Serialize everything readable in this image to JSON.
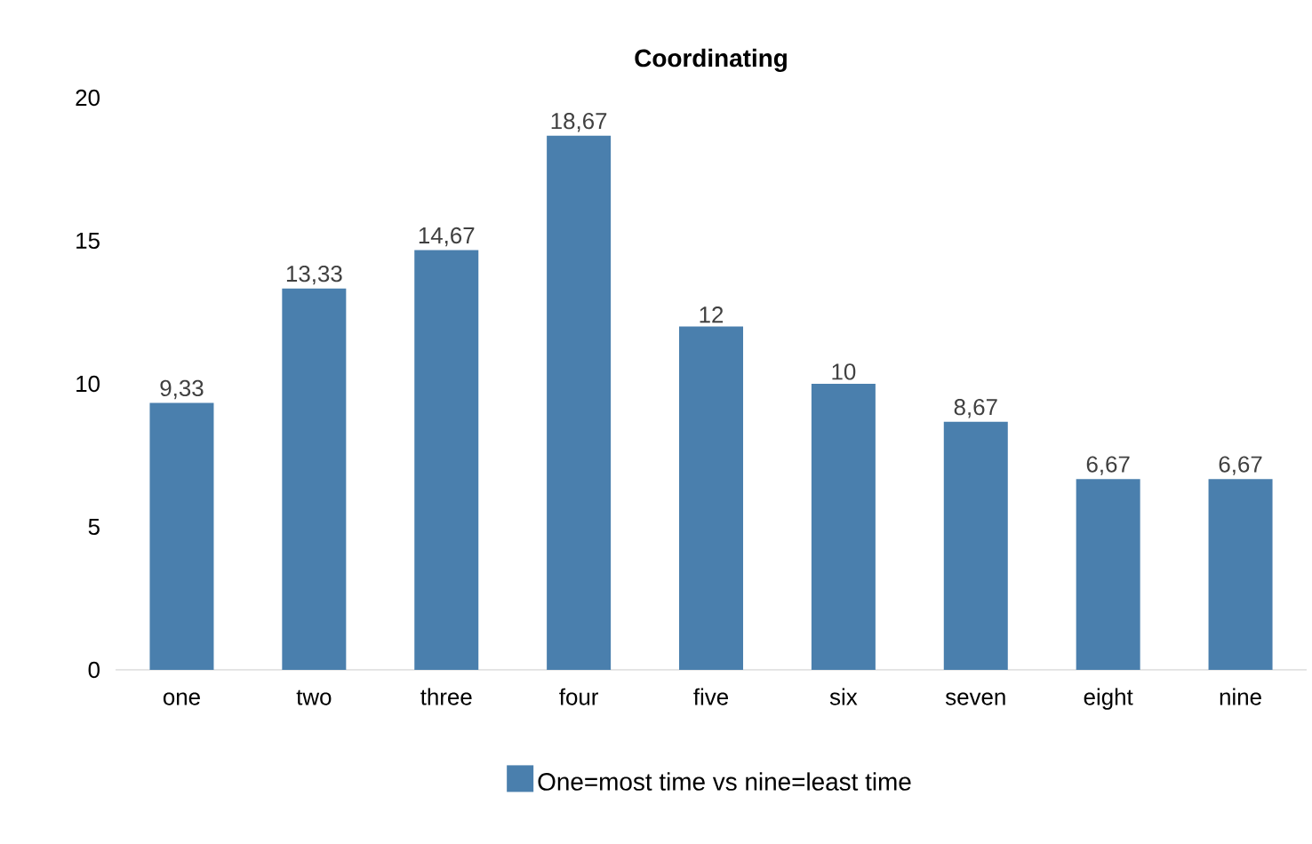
{
  "chart_data": {
    "type": "bar",
    "title": "Coordinating",
    "categories": [
      "one",
      "two",
      "three",
      "four",
      "five",
      "six",
      "seven",
      "eight",
      "nine"
    ],
    "series": [
      {
        "name": "One=most time vs nine=least time",
        "color": "#4a7fad",
        "values": [
          9.33,
          13.33,
          14.67,
          18.67,
          12,
          10,
          8.67,
          6.67,
          6.67
        ],
        "value_labels": [
          "9,33",
          "13,33",
          "14,67",
          "18,67",
          "12",
          "10",
          "8,67",
          "6,67",
          "6,67"
        ]
      }
    ],
    "ylim": [
      0,
      20
    ],
    "yticks": [
      0,
      5,
      10,
      15,
      20
    ],
    "legend": "bottom"
  }
}
